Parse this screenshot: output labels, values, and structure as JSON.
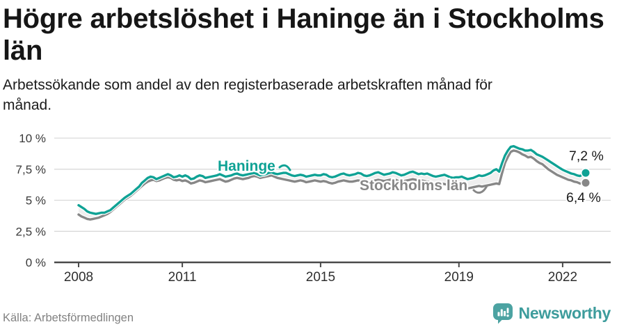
{
  "chart_data": {
    "type": "line",
    "title": "Högre arbetslöshet i Haninge än i Stockholms län",
    "subtitle": "Arbetssökande som andel av den registerbaserade arbetskraften månad för månad.",
    "xlabel": "",
    "ylabel": "",
    "unit": "%",
    "frequency": "monthly",
    "x_start": "2008-01",
    "x_end": "2022-09",
    "ylim": [
      0,
      10.9
    ],
    "grid": true,
    "legend_position": "inline-labels",
    "y_ticks": [
      {
        "value": 10,
        "label": "10 %"
      },
      {
        "value": 7.5,
        "label": "7,5 %"
      },
      {
        "value": 5,
        "label": "5 %"
      },
      {
        "value": 2.5,
        "label": "2,5 %"
      },
      {
        "value": 0,
        "label": "0 %"
      }
    ],
    "x_ticks": [
      {
        "month_index": 0,
        "label": "2008"
      },
      {
        "month_index": 36,
        "label": "2011"
      },
      {
        "month_index": 84,
        "label": "2015"
      },
      {
        "month_index": 132,
        "label": "2019"
      },
      {
        "month_index": 168,
        "label": "2022"
      }
    ],
    "series": [
      {
        "name": "Haninge",
        "color": "#0fa295",
        "end_label": "7,2 %",
        "end_value": 7.2,
        "values": [
          4.6,
          4.45,
          4.3,
          4.1,
          4.0,
          3.95,
          3.9,
          3.95,
          4.0,
          4.0,
          4.1,
          4.2,
          4.4,
          4.6,
          4.8,
          5.0,
          5.2,
          5.35,
          5.5,
          5.7,
          5.9,
          6.1,
          6.4,
          6.6,
          6.8,
          6.9,
          6.85,
          6.7,
          6.8,
          6.9,
          7.0,
          7.1,
          7.0,
          6.85,
          6.9,
          7.0,
          6.9,
          7.0,
          6.9,
          6.7,
          6.75,
          6.9,
          7.0,
          6.95,
          6.8,
          6.85,
          6.9,
          6.95,
          7.0,
          7.1,
          7.0,
          6.9,
          6.95,
          7.0,
          7.1,
          7.15,
          7.05,
          7.0,
          7.05,
          7.1,
          7.15,
          7.2,
          7.1,
          7.0,
          7.05,
          7.1,
          7.2,
          7.25,
          7.15,
          7.1,
          7.15,
          7.2,
          7.2,
          7.1,
          7.0,
          6.95,
          7.0,
          7.05,
          7.0,
          6.9,
          6.95,
          7.0,
          7.05,
          7.0,
          7.0,
          7.1,
          7.05,
          6.9,
          6.85,
          6.9,
          7.0,
          7.1,
          7.15,
          7.05,
          7.0,
          7.05,
          7.1,
          7.2,
          7.15,
          7.0,
          6.95,
          7.0,
          7.1,
          7.2,
          7.25,
          7.15,
          7.05,
          7.1,
          7.15,
          7.25,
          7.2,
          7.1,
          7.0,
          7.05,
          7.15,
          7.25,
          7.3,
          7.2,
          7.1,
          7.15,
          7.1,
          7.15,
          7.05,
          6.95,
          6.9,
          6.95,
          7.0,
          7.05,
          6.95,
          6.85,
          6.8,
          6.85,
          6.85,
          6.9,
          6.8,
          6.7,
          6.75,
          6.8,
          6.9,
          7.0,
          6.95,
          7.0,
          7.1,
          7.2,
          7.4,
          7.5,
          7.3,
          8.0,
          8.6,
          9.0,
          9.3,
          9.35,
          9.25,
          9.15,
          9.1,
          9.0,
          9.0,
          9.05,
          8.9,
          8.7,
          8.6,
          8.5,
          8.35,
          8.2,
          8.05,
          7.9,
          7.75,
          7.6,
          7.45,
          7.35,
          7.25,
          7.15,
          7.1,
          7.0,
          6.95,
          7.05,
          7.2
        ]
      },
      {
        "name": "Stockholms län",
        "color": "#878787",
        "end_label": "6,4 %",
        "end_value": 6.4,
        "values": [
          3.85,
          3.7,
          3.6,
          3.5,
          3.45,
          3.5,
          3.55,
          3.6,
          3.7,
          3.8,
          3.9,
          4.05,
          4.25,
          4.45,
          4.65,
          4.85,
          5.05,
          5.2,
          5.35,
          5.55,
          5.75,
          5.95,
          6.15,
          6.35,
          6.5,
          6.6,
          6.65,
          6.55,
          6.6,
          6.7,
          6.8,
          6.85,
          6.8,
          6.65,
          6.6,
          6.65,
          6.55,
          6.6,
          6.5,
          6.35,
          6.4,
          6.5,
          6.6,
          6.55,
          6.45,
          6.5,
          6.55,
          6.6,
          6.65,
          6.7,
          6.6,
          6.5,
          6.55,
          6.65,
          6.75,
          6.8,
          6.75,
          6.7,
          6.75,
          6.8,
          6.9,
          6.95,
          6.9,
          6.8,
          6.85,
          6.9,
          6.95,
          7.0,
          6.9,
          6.8,
          6.75,
          6.7,
          6.65,
          6.6,
          6.55,
          6.5,
          6.55,
          6.6,
          6.55,
          6.45,
          6.5,
          6.55,
          6.6,
          6.55,
          6.5,
          6.55,
          6.5,
          6.4,
          6.35,
          6.4,
          6.5,
          6.55,
          6.6,
          6.55,
          6.5,
          6.5,
          6.55,
          6.6,
          6.55,
          6.45,
          6.4,
          6.45,
          6.55,
          6.6,
          6.65,
          6.6,
          6.55,
          6.6,
          6.65,
          6.7,
          6.65,
          6.55,
          6.5,
          6.55,
          6.6,
          6.65,
          6.7,
          6.65,
          6.6,
          6.6,
          6.55,
          6.5,
          6.45,
          6.35,
          6.3,
          6.3,
          6.35,
          6.3,
          6.25,
          6.2,
          6.15,
          6.2,
          6.15,
          6.1,
          6.0,
          5.95,
          6.0,
          6.05,
          6.1,
          6.15,
          6.1,
          6.15,
          6.2,
          6.25,
          6.3,
          6.35,
          6.3,
          7.2,
          8.0,
          8.5,
          8.9,
          9.0,
          8.95,
          8.85,
          8.7,
          8.6,
          8.45,
          8.5,
          8.35,
          8.15,
          8.0,
          7.9,
          7.7,
          7.5,
          7.35,
          7.2,
          7.05,
          6.95,
          6.85,
          6.75,
          6.65,
          6.6,
          6.5,
          6.45,
          6.35,
          6.35,
          6.4
        ]
      }
    ]
  },
  "footer": {
    "source": "Källa: Arbetsförmedlingen",
    "brand": "Newsworthy",
    "logo_icon": "newsworthy-speech-bubble-bar-chart-icon"
  },
  "colors": {
    "accent_teal": "#0fa295",
    "line_gray": "#878787",
    "band": "#efefef",
    "grid": "#d9d9d9",
    "axis": "#4a4a4a",
    "tick_text": "#3a3a3a",
    "text_dark": "#1a1a1a",
    "text_muted": "#828282",
    "brand_teal": "#4ca3a2"
  }
}
